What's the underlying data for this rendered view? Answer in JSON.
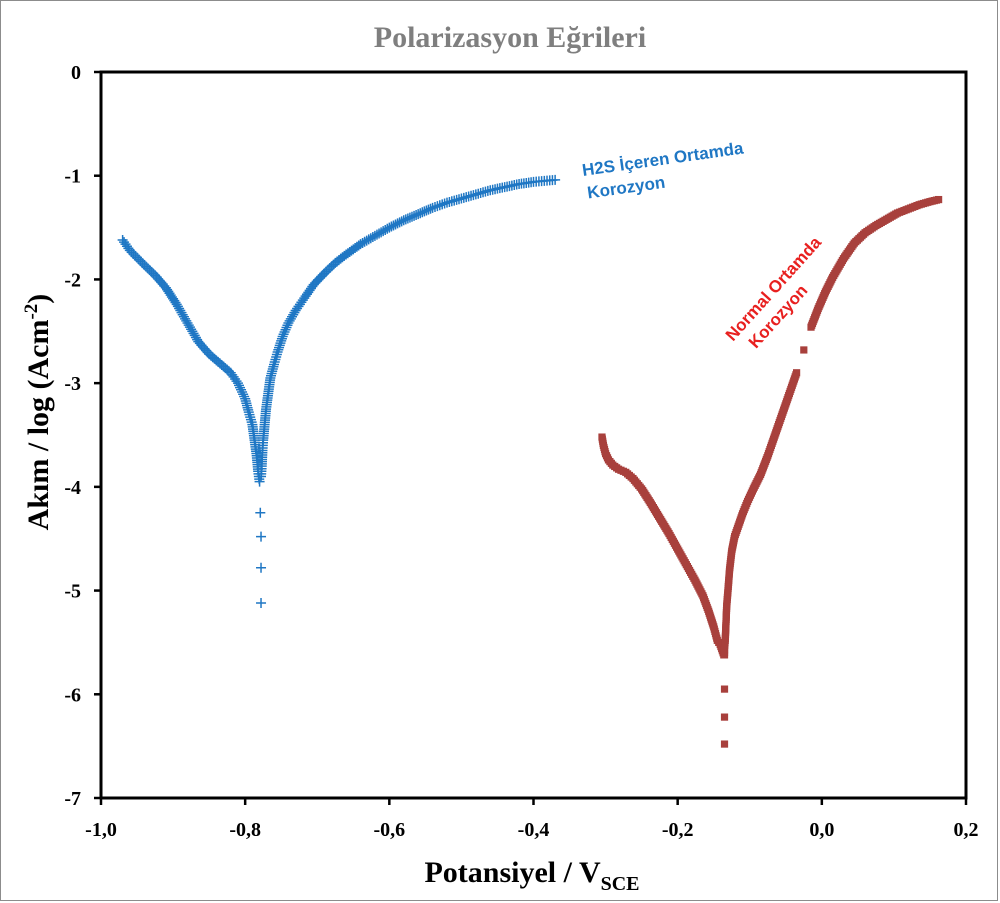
{
  "chart_data": {
    "type": "scatter",
    "title": "Polarizasyon Eğrileri",
    "xlabel_main": "Potansiyel / V",
    "xlabel_sub": "SCE",
    "ylabel_main": "Akım / log (Acm",
    "ylabel_sup": "-2",
    "ylabel_close": ")",
    "xlim": [
      -1.0,
      0.2
    ],
    "ylim": [
      -7,
      0
    ],
    "x_ticks": [
      -1.0,
      -0.8,
      -0.6,
      -0.4,
      -0.2,
      0.0,
      0.2
    ],
    "x_tick_labels": [
      "-1,0",
      "-0,8",
      "-0,6",
      "-0,4",
      "-0,2",
      "0,0",
      "0,2"
    ],
    "y_ticks": [
      0,
      -1,
      -2,
      -3,
      -4,
      -5,
      -6,
      -7
    ],
    "y_tick_labels": [
      "0",
      "-1",
      "-2",
      "-3",
      "-4",
      "-5",
      "-6",
      "-7"
    ],
    "grid": false,
    "legend": "none",
    "annotations": [
      {
        "lines": [
          "H2S İçeren Ortamda",
          "Korozyon"
        ],
        "color": "#1f77c4"
      },
      {
        "lines": [
          "Normal Ortamda",
          "Korozyon"
        ],
        "color": "#e8201f"
      }
    ],
    "series": [
      {
        "marker": "plus",
        "color": "#1f77c4",
        "x": [
          -0.97,
          -0.96,
          -0.95,
          -0.94,
          -0.925,
          -0.91,
          -0.895,
          -0.88,
          -0.865,
          -0.85,
          -0.835,
          -0.82,
          -0.81,
          -0.8,
          -0.795,
          -0.79,
          -0.787,
          -0.784,
          -0.782,
          -0.78,
          -0.779,
          -0.778,
          -0.778,
          -0.778,
          -0.778,
          -0.777,
          -0.776,
          -0.775,
          -0.773,
          -0.771,
          -0.768,
          -0.765,
          -0.76,
          -0.755,
          -0.748,
          -0.74,
          -0.73,
          -0.718,
          -0.705,
          -0.69,
          -0.675,
          -0.66,
          -0.64,
          -0.62,
          -0.6,
          -0.58,
          -0.56,
          -0.54,
          -0.52,
          -0.5,
          -0.48,
          -0.46,
          -0.44,
          -0.42,
          -0.4,
          -0.385,
          -0.37
        ],
        "y": [
          -1.62,
          -1.72,
          -1.79,
          -1.86,
          -1.96,
          -2.08,
          -2.24,
          -2.42,
          -2.6,
          -2.72,
          -2.81,
          -2.9,
          -3.0,
          -3.15,
          -3.28,
          -3.4,
          -3.55,
          -3.7,
          -3.85,
          -3.95,
          -4.25,
          -4.48,
          -4.78,
          -5.12,
          -3.9,
          -3.8,
          -3.65,
          -3.55,
          -3.4,
          -3.25,
          -3.1,
          -2.95,
          -2.82,
          -2.7,
          -2.55,
          -2.42,
          -2.3,
          -2.18,
          -2.05,
          -1.94,
          -1.84,
          -1.76,
          -1.66,
          -1.58,
          -1.5,
          -1.43,
          -1.37,
          -1.31,
          -1.26,
          -1.22,
          -1.18,
          -1.14,
          -1.11,
          -1.08,
          -1.06,
          -1.05,
          -1.04
        ]
      },
      {
        "marker": "square",
        "color": "#a8403c",
        "x": [
          -0.305,
          -0.303,
          -0.3,
          -0.296,
          -0.29,
          -0.282,
          -0.272,
          -0.262,
          -0.25,
          -0.238,
          -0.225,
          -0.212,
          -0.2,
          -0.188,
          -0.176,
          -0.165,
          -0.157,
          -0.15,
          -0.145,
          -0.141,
          -0.138,
          -0.136,
          -0.135,
          -0.135,
          -0.135,
          -0.135,
          -0.135,
          -0.134,
          -0.133,
          -0.132,
          -0.13,
          -0.128,
          -0.125,
          -0.121,
          -0.116,
          -0.11,
          -0.103,
          -0.095,
          -0.085,
          -0.075,
          -0.065,
          -0.055,
          -0.045,
          -0.035,
          -0.025,
          -0.015,
          -0.005,
          0.005,
          0.015,
          0.03,
          0.045,
          0.06,
          0.075,
          0.09,
          0.105,
          0.12,
          0.135,
          0.15,
          0.162
        ],
        "y": [
          -3.52,
          -3.6,
          -3.68,
          -3.74,
          -3.79,
          -3.83,
          -3.86,
          -3.92,
          -4.02,
          -4.15,
          -4.3,
          -4.45,
          -4.6,
          -4.75,
          -4.9,
          -5.05,
          -5.2,
          -5.35,
          -5.48,
          -5.52,
          -5.58,
          -5.62,
          -5.95,
          -6.22,
          -6.48,
          -5.62,
          -5.55,
          -5.48,
          -5.32,
          -5.15,
          -4.98,
          -4.8,
          -4.62,
          -4.48,
          -4.38,
          -4.26,
          -4.14,
          -4.02,
          -3.88,
          -3.7,
          -3.5,
          -3.3,
          -3.1,
          -2.9,
          -2.68,
          -2.46,
          -2.28,
          -2.12,
          -1.98,
          -1.8,
          -1.65,
          -1.55,
          -1.48,
          -1.42,
          -1.36,
          -1.32,
          -1.28,
          -1.25,
          -1.23
        ]
      }
    ]
  }
}
